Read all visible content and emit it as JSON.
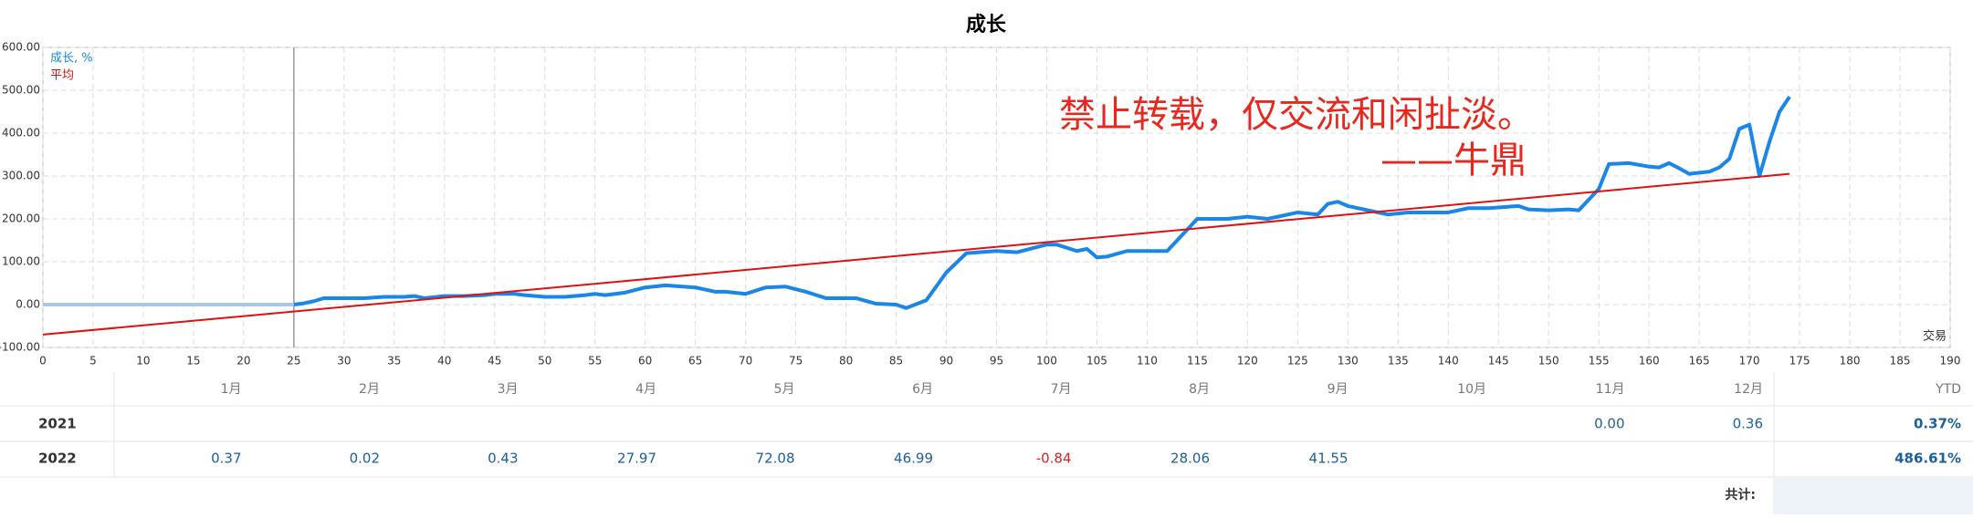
{
  "chart_data": {
    "type": "line",
    "title": "成长",
    "series": [
      {
        "name": "成长, %",
        "color": "#1a86e8",
        "x": [
          25,
          26,
          27,
          28,
          30,
          32,
          34,
          36,
          37,
          38,
          40,
          42,
          44,
          45,
          47,
          48,
          50,
          52,
          54,
          55,
          56,
          58,
          60,
          62,
          65,
          67,
          68,
          70,
          72,
          74,
          76,
          78,
          80,
          81,
          83,
          85,
          86,
          88,
          90,
          92,
          95,
          97,
          100,
          101,
          103,
          104,
          105,
          106,
          108,
          110,
          112,
          115,
          118,
          120,
          122,
          125,
          127,
          128,
          129,
          130,
          132,
          134,
          136,
          140,
          142,
          144,
          147,
          148,
          150,
          152,
          153,
          155,
          156,
          158,
          160,
          161,
          162,
          163,
          164,
          166,
          167,
          168,
          169,
          170,
          171,
          172,
          173,
          174
        ],
        "values": [
          0,
          3,
          8,
          15,
          15,
          15,
          18,
          18,
          20,
          15,
          20,
          20,
          22,
          25,
          25,
          22,
          18,
          18,
          22,
          25,
          22,
          28,
          40,
          45,
          40,
          30,
          30,
          25,
          40,
          42,
          30,
          15,
          15,
          15,
          2,
          0,
          -8,
          10,
          75,
          120,
          125,
          122,
          140,
          140,
          125,
          130,
          110,
          112,
          125,
          125,
          125,
          200,
          200,
          205,
          200,
          215,
          210,
          235,
          240,
          230,
          220,
          210,
          215,
          215,
          225,
          225,
          230,
          222,
          220,
          222,
          220,
          270,
          328,
          330,
          322,
          320,
          330,
          318,
          305,
          310,
          320,
          340,
          410,
          420,
          300,
          380,
          450,
          485
        ]
      },
      {
        "name": "平均",
        "color": "#e01010",
        "x": [
          0,
          174
        ],
        "values": [
          -70,
          305
        ]
      },
      {
        "color": "#a9c6e2",
        "x": [
          0,
          25
        ],
        "values": [
          0,
          0
        ]
      }
    ],
    "xlabel": "交易",
    "xlim": [
      0,
      190
    ],
    "xticks": [
      0,
      5,
      10,
      15,
      20,
      25,
      30,
      35,
      40,
      45,
      50,
      55,
      60,
      65,
      70,
      75,
      80,
      85,
      90,
      95,
      100,
      105,
      110,
      115,
      120,
      125,
      130,
      135,
      140,
      145,
      150,
      155,
      160,
      165,
      170,
      175,
      180,
      185,
      190
    ],
    "ylim": [
      -100,
      600
    ],
    "yticks": [
      {
        "value": -100,
        "label": "-100.00"
      },
      {
        "value": 0,
        "label": "0.00"
      },
      {
        "value": 100,
        "label": "100.00"
      },
      {
        "value": 200,
        "label": "200.00"
      },
      {
        "value": 300,
        "label": "300.00"
      },
      {
        "value": 400,
        "label": "400.00"
      },
      {
        "value": 500,
        "label": "500.00"
      },
      {
        "value": 600,
        "label": "600.00"
      }
    ],
    "grid": true,
    "marker_x": 25
  },
  "watermark": [
    "禁止转载，仅交流和闲扯淡。",
    "——牛鼎"
  ],
  "table": {
    "months": [
      "1月",
      "2月",
      "3月",
      "4月",
      "5月",
      "6月",
      "7月",
      "8月",
      "9月",
      "10月",
      "11月",
      "12月"
    ],
    "ytd_header": "YTD",
    "rows": [
      {
        "year": "2021",
        "values": [
          null,
          null,
          null,
          null,
          null,
          null,
          null,
          null,
          null,
          null,
          "0.00",
          "0.36"
        ],
        "ytd": "0.37%"
      },
      {
        "year": "2022",
        "values": [
          "0.37",
          "0.02",
          "0.43",
          "27.97",
          "72.08",
          "46.99",
          "-0.84",
          "28.06",
          "41.55",
          null,
          null,
          null
        ],
        "ytd": "486.61%"
      }
    ],
    "total_label": "共计:"
  }
}
